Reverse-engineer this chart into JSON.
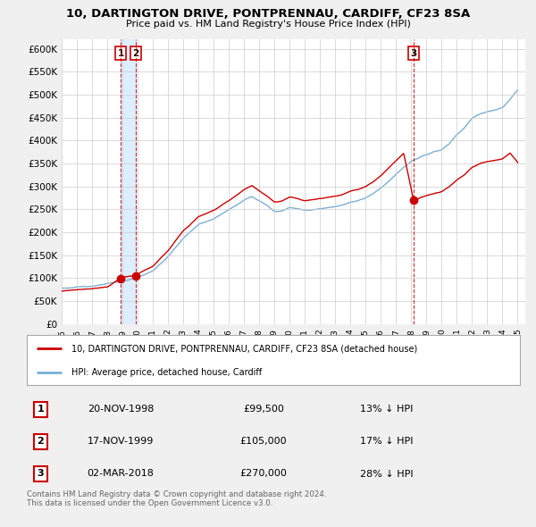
{
  "title": "10, DARTINGTON DRIVE, PONTPRENNAU, CARDIFF, CF23 8SA",
  "subtitle": "Price paid vs. HM Land Registry's House Price Index (HPI)",
  "ylim": [
    0,
    620000
  ],
  "yticks": [
    0,
    50000,
    100000,
    150000,
    200000,
    250000,
    300000,
    350000,
    400000,
    450000,
    500000,
    550000,
    600000
  ],
  "background_color": "#f0f0f0",
  "plot_bg_color": "#ffffff",
  "grid_color": "#cccccc",
  "red_line_color": "#cc0000",
  "blue_line_color": "#7aafd4",
  "shade_color": "#ddeeff",
  "transactions": [
    {
      "date_num": 1998.89,
      "price": 99500,
      "label": "1"
    },
    {
      "date_num": 1999.88,
      "price": 105000,
      "label": "2"
    },
    {
      "date_num": 2018.17,
      "price": 270000,
      "label": "3"
    }
  ],
  "table_rows": [
    {
      "num": "1",
      "date": "20-NOV-1998",
      "price": "£99,500",
      "note": "13% ↓ HPI"
    },
    {
      "num": "2",
      "date": "17-NOV-1999",
      "price": "£105,000",
      "note": "17% ↓ HPI"
    },
    {
      "num": "3",
      "date": "02-MAR-2018",
      "price": "£270,000",
      "note": "28% ↓ HPI"
    }
  ],
  "legend_red": "10, DARTINGTON DRIVE, PONTPRENNAU, CARDIFF, CF23 8SA (detached house)",
  "legend_blue": "HPI: Average price, detached house, Cardiff",
  "footnote": "Contains HM Land Registry data © Crown copyright and database right 2024.\nThis data is licensed under the Open Government Licence v3.0.",
  "dashed_line_color": "#cc0000",
  "hpi_keypoints": [
    [
      1995.0,
      78000
    ],
    [
      1996.0,
      80000
    ],
    [
      1997.0,
      83000
    ],
    [
      1998.0,
      87000
    ],
    [
      1999.0,
      92000
    ],
    [
      2000.0,
      100000
    ],
    [
      2001.0,
      115000
    ],
    [
      2002.0,
      145000
    ],
    [
      2003.0,
      185000
    ],
    [
      2004.0,
      215000
    ],
    [
      2005.0,
      228000
    ],
    [
      2006.0,
      248000
    ],
    [
      2007.0,
      270000
    ],
    [
      2007.5,
      278000
    ],
    [
      2008.0,
      268000
    ],
    [
      2008.5,
      258000
    ],
    [
      2009.0,
      245000
    ],
    [
      2009.5,
      248000
    ],
    [
      2010.0,
      255000
    ],
    [
      2010.5,
      252000
    ],
    [
      2011.0,
      248000
    ],
    [
      2011.5,
      250000
    ],
    [
      2012.0,
      252000
    ],
    [
      2012.5,
      255000
    ],
    [
      2013.0,
      258000
    ],
    [
      2013.5,
      262000
    ],
    [
      2014.0,
      268000
    ],
    [
      2014.5,
      272000
    ],
    [
      2015.0,
      278000
    ],
    [
      2015.5,
      288000
    ],
    [
      2016.0,
      300000
    ],
    [
      2016.5,
      315000
    ],
    [
      2017.0,
      330000
    ],
    [
      2017.5,
      345000
    ],
    [
      2018.0,
      358000
    ],
    [
      2018.5,
      365000
    ],
    [
      2019.0,
      372000
    ],
    [
      2019.5,
      378000
    ],
    [
      2020.0,
      382000
    ],
    [
      2020.5,
      395000
    ],
    [
      2021.0,
      415000
    ],
    [
      2021.5,
      430000
    ],
    [
      2022.0,
      450000
    ],
    [
      2022.5,
      460000
    ],
    [
      2023.0,
      465000
    ],
    [
      2023.5,
      468000
    ],
    [
      2024.0,
      472000
    ],
    [
      2024.5,
      490000
    ],
    [
      2025.0,
      510000
    ]
  ],
  "red_keypoints": [
    [
      1995.0,
      72000
    ],
    [
      1996.0,
      74000
    ],
    [
      1997.0,
      77000
    ],
    [
      1998.0,
      81000
    ],
    [
      1998.89,
      99500
    ],
    [
      1999.0,
      101000
    ],
    [
      1999.88,
      105000
    ],
    [
      2000.0,
      108000
    ],
    [
      2001.0,
      124000
    ],
    [
      2002.0,
      157000
    ],
    [
      2003.0,
      200000
    ],
    [
      2004.0,
      233000
    ],
    [
      2005.0,
      248000
    ],
    [
      2006.0,
      269000
    ],
    [
      2007.0,
      293000
    ],
    [
      2007.5,
      302000
    ],
    [
      2008.0,
      291000
    ],
    [
      2008.5,
      280000
    ],
    [
      2009.0,
      266000
    ],
    [
      2009.5,
      269000
    ],
    [
      2010.0,
      277000
    ],
    [
      2010.5,
      274000
    ],
    [
      2011.0,
      269000
    ],
    [
      2011.5,
      271000
    ],
    [
      2012.0,
      274000
    ],
    [
      2012.5,
      277000
    ],
    [
      2013.0,
      280000
    ],
    [
      2013.5,
      284000
    ],
    [
      2014.0,
      291000
    ],
    [
      2014.5,
      295000
    ],
    [
      2015.0,
      302000
    ],
    [
      2015.5,
      313000
    ],
    [
      2016.0,
      326000
    ],
    [
      2016.5,
      342000
    ],
    [
      2017.0,
      358000
    ],
    [
      2017.5,
      375000
    ],
    [
      2018.17,
      270000
    ],
    [
      2018.5,
      276000
    ],
    [
      2019.0,
      282000
    ],
    [
      2019.5,
      286000
    ],
    [
      2020.0,
      290000
    ],
    [
      2020.5,
      300000
    ],
    [
      2021.0,
      315000
    ],
    [
      2021.5,
      326000
    ],
    [
      2022.0,
      342000
    ],
    [
      2022.5,
      350000
    ],
    [
      2023.0,
      354000
    ],
    [
      2023.5,
      356000
    ],
    [
      2024.0,
      360000
    ],
    [
      2024.5,
      373000
    ],
    [
      2025.0,
      352000
    ]
  ]
}
